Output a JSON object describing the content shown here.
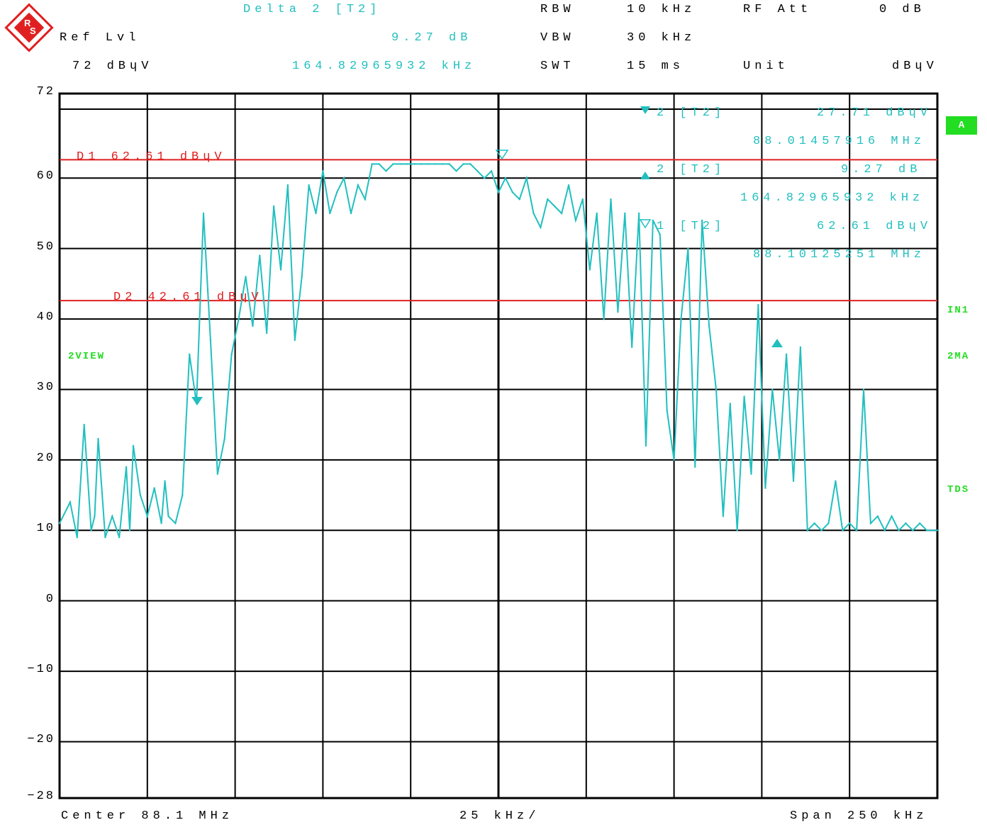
{
  "header": {
    "delta_title": "Delta 2 [T2]",
    "ref_lvl_label": "Ref Lvl",
    "ref_lvl_value": "72 dBɥV",
    "delta_value_db": "9.27 dB",
    "delta_value_freq": "164.82965932 kHz",
    "rbw_label": "RBW",
    "rbw_value": "10 kHz",
    "vbw_label": "VBW",
    "vbw_value": "30 kHz",
    "swt_label": "SWT",
    "swt_value": "15 ms",
    "rf_att_label": "RF Att",
    "rf_att_value": "0 dB",
    "unit_label": "Unit",
    "unit_value": "dBɥV"
  },
  "markers_panel": {
    "m2_label": "2 [T2]",
    "m2_level": "27.71 dBɥV",
    "m2_freq": "88.01457916 MHz",
    "d2_label": "2 [T2]",
    "d2_level": "9.27 dB",
    "d2_freq": "164.82965932 kHz",
    "m1_label": "1 [T2]",
    "m1_level": "62.61 dBɥV",
    "m1_freq": "88.10125251 MHz"
  },
  "side_labels": {
    "a_badge": "A",
    "in1": "IN1",
    "view": "2VIEW",
    "ma": "2MA",
    "tds": "TDS"
  },
  "footer": {
    "center": "Center 88.1 MHz",
    "div": "25 kHz/",
    "span": "Span 250 kHz"
  },
  "colors": {
    "trace": "#22bfbf",
    "lines": "#e02020",
    "badge": "#22dd22"
  },
  "chart_data": {
    "type": "line",
    "title": "",
    "xlabel": "",
    "ylabel": "",
    "xlim": [
      87.975,
      88.225
    ],
    "ylim": [
      -28,
      72
    ],
    "yticks": [
      72,
      60,
      50,
      40,
      30,
      20,
      10,
      0,
      -10,
      -20,
      -28
    ],
    "ytick_labels": [
      "72",
      "60",
      "50",
      "40",
      "30",
      "20",
      "10",
      "0",
      "−10",
      "−20",
      "−28"
    ],
    "display_lines": [
      {
        "name": "D1",
        "label": "D1 62.61 dBɥV",
        "value": 62.61
      },
      {
        "name": "D2",
        "label": "D2 42.61 dBɥV",
        "value": 42.61
      }
    ],
    "series": [
      {
        "x": [
          87.975,
          87.978,
          87.98,
          87.982,
          87.984,
          87.985,
          87.986,
          87.988,
          87.99,
          87.992,
          87.994,
          87.995,
          87.996,
          87.998,
          88.0,
          88.002,
          88.004,
          88.005,
          88.006,
          88.008,
          88.01,
          88.012,
          88.014,
          88.016,
          88.018,
          88.02,
          88.022,
          88.024,
          88.026,
          88.028,
          88.03,
          88.032,
          88.034,
          88.036,
          88.038,
          88.04,
          88.042,
          88.044,
          88.046,
          88.048,
          88.05,
          88.052,
          88.054,
          88.056,
          88.058,
          88.06,
          88.062,
          88.064,
          88.066,
          88.068,
          88.07,
          88.072,
          88.074,
          88.076,
          88.078,
          88.08,
          88.082,
          88.084,
          88.086,
          88.088,
          88.09,
          88.092,
          88.094,
          88.096,
          88.098,
          88.1,
          88.102,
          88.104,
          88.106,
          88.108,
          88.11,
          88.112,
          88.114,
          88.116,
          88.118,
          88.12,
          88.122,
          88.124,
          88.126,
          88.128,
          88.13,
          88.132,
          88.134,
          88.136,
          88.138,
          88.14,
          88.142,
          88.144,
          88.146,
          88.148,
          88.15,
          88.152,
          88.154,
          88.156,
          88.158,
          88.16,
          88.162,
          88.164,
          88.166,
          88.168,
          88.17,
          88.172,
          88.174,
          88.176,
          88.178,
          88.18,
          88.182,
          88.184,
          88.186,
          88.188,
          88.19,
          88.192,
          88.194,
          88.196,
          88.198,
          88.2,
          88.202,
          88.204,
          88.206,
          88.208,
          88.21,
          88.212,
          88.214,
          88.216,
          88.218,
          88.22,
          88.222,
          88.225
        ],
        "y": [
          11,
          14,
          9,
          25,
          10,
          12,
          23,
          9,
          12,
          9,
          19,
          10,
          22,
          15,
          12,
          16,
          11,
          17,
          12,
          11,
          15,
          35,
          28,
          55,
          37,
          18,
          23,
          35,
          40,
          46,
          39,
          49,
          38,
          56,
          47,
          59,
          37,
          46,
          59,
          55,
          61,
          55,
          58,
          60,
          55,
          59,
          57,
          62,
          62,
          61,
          62,
          62,
          62,
          62,
          62,
          62,
          62,
          62,
          62,
          61,
          62,
          62,
          61,
          60,
          61,
          58,
          60,
          58,
          57,
          60,
          55,
          53,
          57,
          56,
          55,
          59,
          54,
          57,
          47,
          55,
          40,
          57,
          41,
          55,
          36,
          55,
          22,
          54,
          52,
          27,
          20,
          40,
          50,
          19,
          54,
          39,
          30,
          12,
          28,
          10,
          29,
          18,
          42,
          16,
          30,
          20,
          35,
          17,
          36,
          10,
          11,
          10,
          11,
          17,
          10,
          11,
          10,
          30,
          11,
          12,
          10,
          12,
          10,
          11,
          10,
          11,
          10,
          10
        ]
      }
    ]
  }
}
